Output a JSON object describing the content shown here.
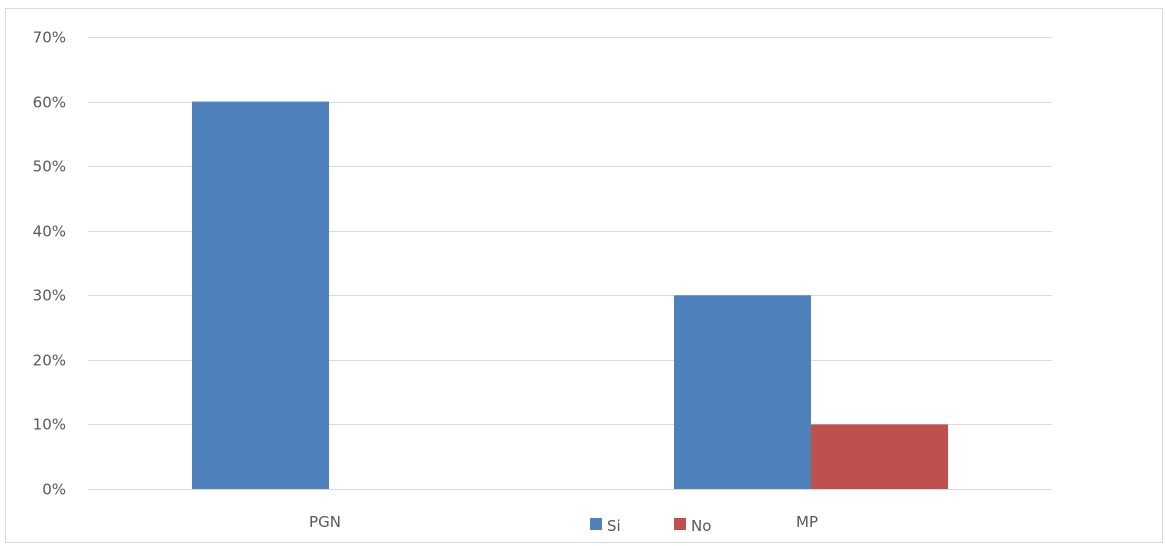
{
  "chart_data": {
    "type": "bar",
    "categories": [
      "PGN",
      "MP"
    ],
    "series": [
      {
        "name": "Si",
        "values": [
          60,
          30
        ],
        "color": "#4f81bd"
      },
      {
        "name": "No",
        "values": [
          0,
          10
        ],
        "color": "#c0504d"
      }
    ],
    "ylim": [
      0,
      70
    ],
    "yticks": [
      0,
      10,
      20,
      30,
      40,
      50,
      60,
      70
    ],
    "y_tick_labels": [
      "0%",
      "10%",
      "20%",
      "30%",
      "40%",
      "50%",
      "60%",
      "70%"
    ],
    "grid": true,
    "legend_position": "bottom",
    "gridline_color": "#d9d9d9",
    "tick_label_color": "#595959"
  }
}
